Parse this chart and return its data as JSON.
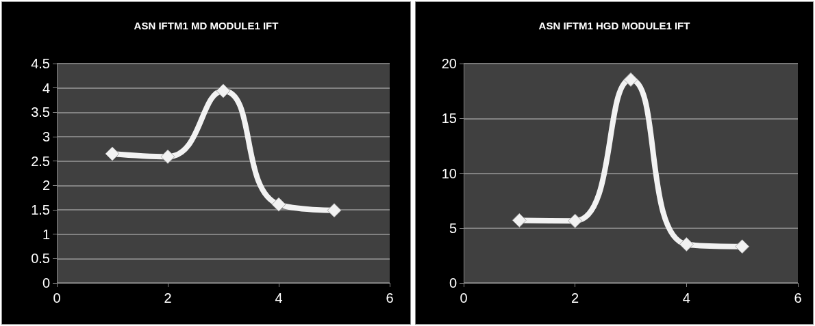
{
  "chart_data": [
    {
      "type": "line",
      "title": "ASN IFTM1 MD MODULE1 IFT",
      "x": [
        1,
        2,
        3,
        4,
        5
      ],
      "series": [
        {
          "color": "#f2f2f2",
          "values": [
            2.65,
            2.59,
            3.94,
            1.61,
            1.49
          ]
        }
      ],
      "xlim": [
        0,
        6
      ],
      "xticks": [
        0,
        2,
        4,
        6
      ],
      "ylim": [
        0,
        4.5
      ],
      "yticks": [
        0,
        0.5,
        1,
        1.5,
        2,
        2.5,
        3,
        3.5,
        4,
        4.5
      ],
      "grid": "y",
      "marker": "diamond",
      "line_style": "solid"
    },
    {
      "type": "line",
      "title": "ASN IFTM1 HGD MODULE1 IFT",
      "x": [
        1,
        2,
        3,
        4,
        5
      ],
      "series": [
        {
          "color": "#f2f2f2",
          "values": [
            5.71,
            5.66,
            18.54,
            3.52,
            3.32
          ]
        }
      ],
      "xlim": [
        0,
        6
      ],
      "xticks": [
        0,
        2,
        4,
        6
      ],
      "ylim": [
        0,
        20
      ],
      "yticks": [
        0,
        5,
        10,
        15,
        20
      ],
      "grid": "y",
      "marker": "diamond",
      "line_style": "solid"
    }
  ]
}
